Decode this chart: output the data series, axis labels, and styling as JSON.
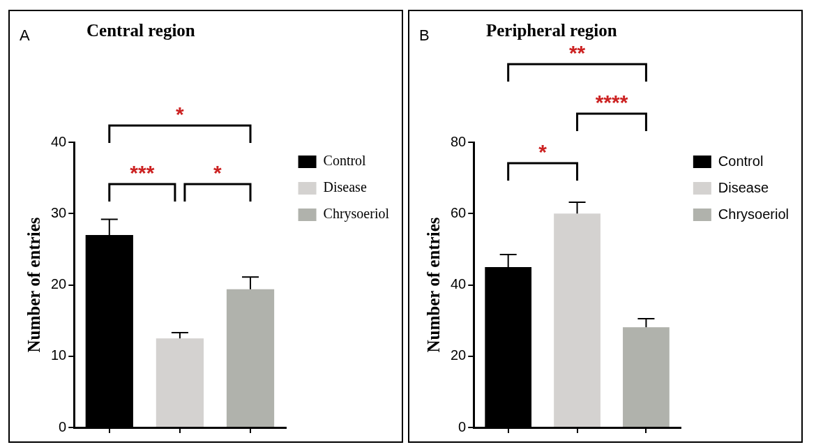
{
  "chart_data": [
    {
      "type": "bar",
      "title": "Central region",
      "ylabel": "Number of entries",
      "categories": [
        null,
        null,
        null
      ],
      "series": [
        {
          "name": "Control",
          "color": "#000000",
          "values": [
            27,
            null,
            null
          ],
          "errors": [
            2.2,
            null,
            null
          ]
        },
        {
          "name": "Disease",
          "color": "#d4d2d0",
          "values": [
            null,
            12.5,
            null
          ],
          "errors": [
            null,
            0.8,
            null
          ]
        },
        {
          "name": "Chrysoeriol",
          "color": "#b0b2ac",
          "values": [
            null,
            null,
            19.4
          ],
          "errors": [
            null,
            null,
            1.7
          ]
        }
      ],
      "ylim": [
        0,
        40
      ],
      "yticks": [
        0,
        10,
        20,
        30,
        40
      ],
      "grid": false,
      "legend": "right",
      "tick_labels": "y",
      "annotations": [
        "A",
        "*",
        "***",
        "*"
      ]
    },
    {
      "type": "bar",
      "title": "Peripheral region",
      "ylabel": "Number of entries",
      "categories": [
        null,
        null,
        null
      ],
      "series": [
        {
          "name": "Control",
          "color": "#000000",
          "values": [
            45,
            null,
            null
          ],
          "errors": [
            3.5,
            null,
            null
          ]
        },
        {
          "name": "Disease",
          "color": "#d4d2d0",
          "values": [
            null,
            60,
            null
          ],
          "errors": [
            null,
            3.2,
            null
          ]
        },
        {
          "name": "Chrysoeriol",
          "color": "#b0b2ac",
          "values": [
            null,
            null,
            28.1
          ],
          "errors": [
            null,
            null,
            2.4
          ]
        }
      ],
      "ylim": [
        0,
        80
      ],
      "yticks": [
        0,
        20,
        40,
        60,
        80
      ],
      "grid": false,
      "legend": "right",
      "tick_labels": "y",
      "annotations": [
        "B",
        "*",
        "****",
        "**"
      ]
    }
  ]
}
